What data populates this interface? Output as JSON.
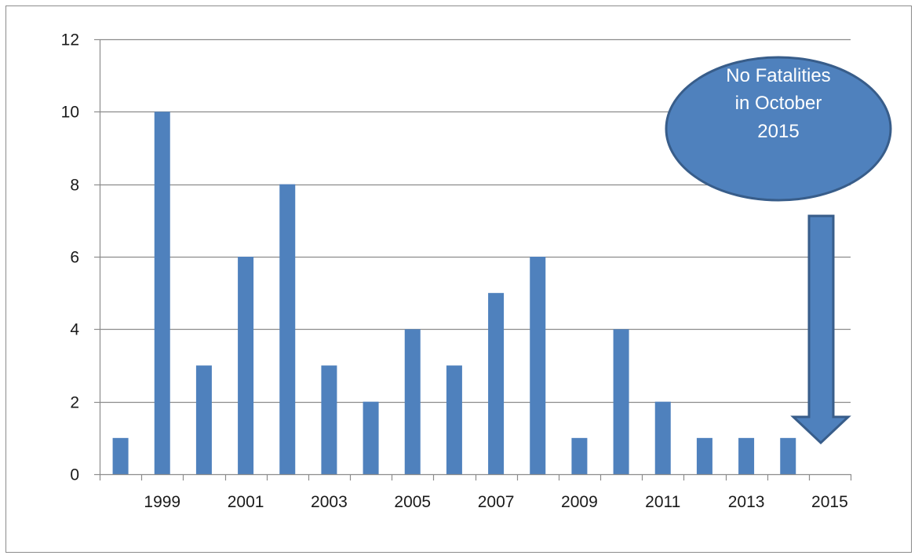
{
  "chart_data": {
    "type": "bar",
    "x": [
      1998,
      1999,
      2000,
      2001,
      2002,
      2003,
      2004,
      2005,
      2006,
      2007,
      2008,
      2009,
      2010,
      2011,
      2012,
      2013,
      2014,
      2015
    ],
    "x_tick_labels": [
      "1999",
      "2001",
      "2003",
      "2005",
      "2007",
      "2009",
      "2011",
      "2013",
      "2015"
    ],
    "values": [
      1,
      10,
      3,
      6,
      8,
      3,
      2,
      4,
      3,
      5,
      6,
      1,
      4,
      2,
      1,
      1,
      1,
      0
    ],
    "y_ticks": [
      "0",
      "2",
      "4",
      "6",
      "8",
      "10",
      "12"
    ],
    "ylim": [
      0,
      12
    ],
    "grid": true,
    "legend": "none",
    "bar_color": "#4f81bd",
    "title": "",
    "xlabel": "",
    "ylabel": "",
    "annotation": {
      "text_lines": [
        "No Fatalities",
        "in October",
        "2015"
      ],
      "shape": "ellipse",
      "fill": "#4f81bd",
      "stroke": "#385d8a",
      "arrow": "down-arrow pointing to 2015"
    }
  }
}
